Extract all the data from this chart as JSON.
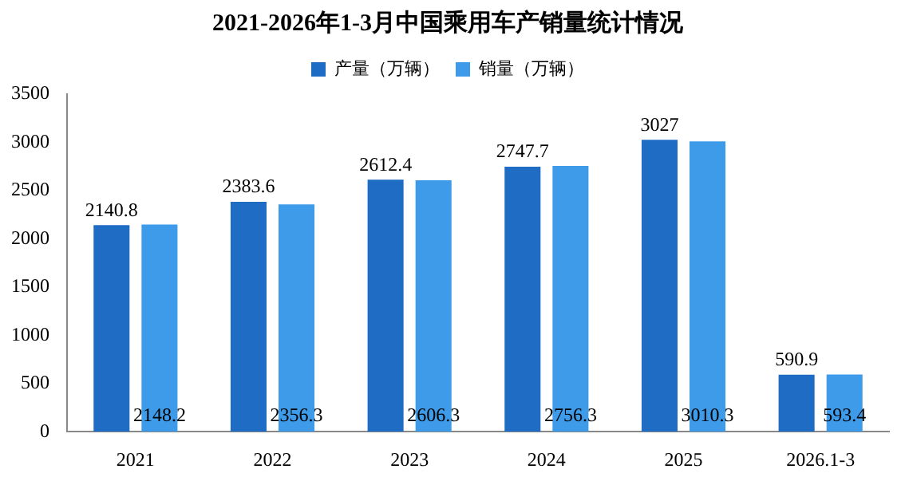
{
  "chart_data": {
    "type": "bar",
    "title": "2021-2026年1-3月中国乘用车产销量统计情况",
    "categories": [
      "2021",
      "2022",
      "2023",
      "2024",
      "2025",
      "2026.1-3"
    ],
    "series": [
      {
        "name": "产量（万辆）",
        "color": "#1f6cc4",
        "values": [
          2140.8,
          2383.6,
          2612.4,
          2747.7,
          3027,
          590.9
        ]
      },
      {
        "name": "销量（万辆）",
        "color": "#3d9be9",
        "values": [
          2148.2,
          2356.3,
          2606.3,
          2756.3,
          3010.3,
          593.4
        ]
      }
    ],
    "ylim": [
      0,
      3500
    ],
    "yticks": [
      0,
      500,
      1000,
      1500,
      2000,
      2500,
      3000,
      3500
    ],
    "grid": false,
    "legend": "top",
    "data_labels": true
  }
}
